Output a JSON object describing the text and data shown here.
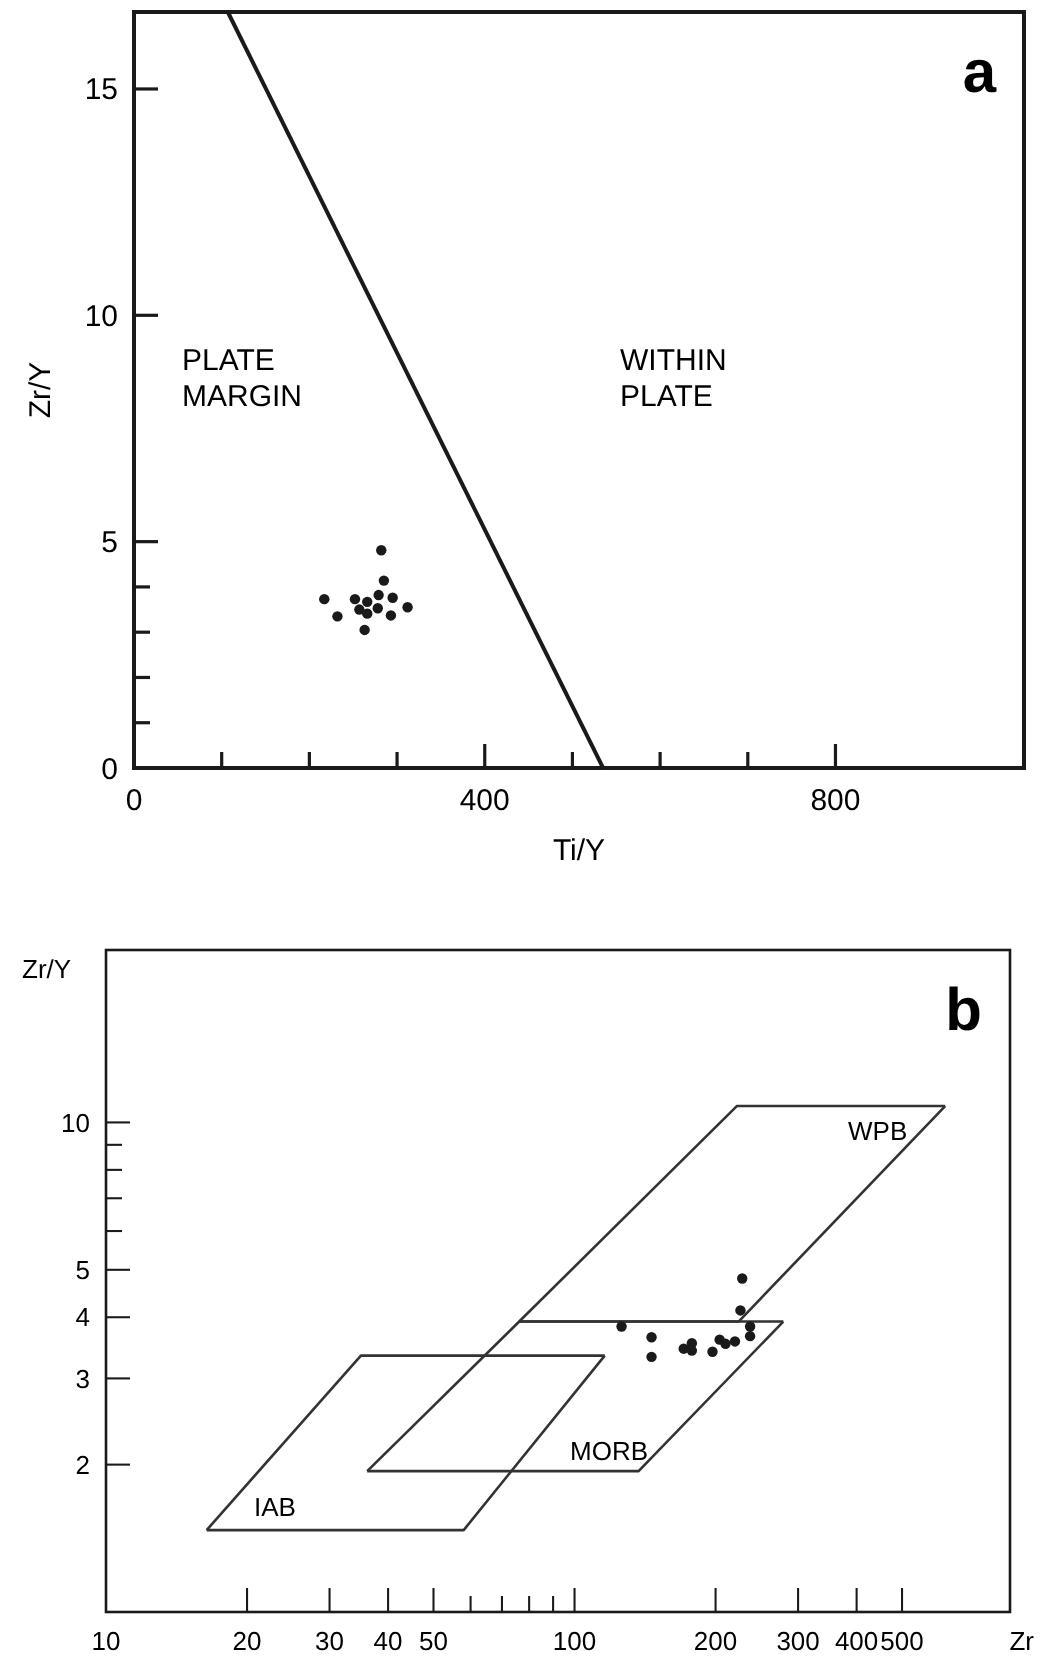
{
  "chart_data": [
    {
      "type": "scatter",
      "xlabel": "Ti/Y",
      "ylabel": "Zr/Y",
      "xlim": [
        0,
        1015
      ],
      "ylim": [
        0,
        16.7
      ],
      "xticks": [
        0,
        {
          "value": 100,
          "label": null
        },
        {
          "value": 200,
          "label": null
        },
        {
          "value": 300,
          "label": null
        },
        400,
        {
          "value": 500,
          "label": null
        },
        {
          "value": 600,
          "label": null
        },
        {
          "value": 700,
          "label": null
        },
        800
      ],
      "yticks": [
        0,
        {
          "value": 1,
          "label": null
        },
        {
          "value": 2,
          "label": null
        },
        {
          "value": 3,
          "label": null
        },
        {
          "value": 4,
          "label": null
        },
        5,
        10,
        15
      ],
      "marker": "circle",
      "grid": false,
      "annotations": [
        "a",
        "PLATE MARGIN",
        "WITHIN PLATE"
      ],
      "series": [
        {
          "type": "line",
          "marker": "none",
          "color": "#1a1a1a",
          "x": [
            107,
            535
          ],
          "values": [
            16.7,
            0
          ]
        },
        {
          "color": "#1a1a1a",
          "x": [
            282,
            285,
            217,
            232,
            252,
            266,
            279,
            295,
            266,
            278,
            293,
            312,
            263,
            257
          ],
          "values": [
            4.81,
            4.14,
            3.73,
            3.35,
            3.73,
            3.67,
            3.82,
            3.76,
            3.41,
            3.53,
            3.37,
            3.55,
            3.05,
            3.5
          ]
        }
      ]
    },
    {
      "type": "scatter",
      "xlabel": "Zr",
      "ylabel": "Zr/Y",
      "log": "xy",
      "xlim": [
        10,
        850
      ],
      "ylim": [
        1,
        22.5
      ],
      "xticks": [
        10,
        20,
        30,
        40,
        50,
        {
          "value": 60,
          "label": null
        },
        {
          "value": 70,
          "label": null
        },
        {
          "value": 80,
          "label": null
        },
        {
          "value": 90,
          "label": null
        },
        100,
        200,
        300,
        400,
        500
      ],
      "yticks": [
        2,
        3,
        4,
        5,
        {
          "value": 6,
          "label": null
        },
        {
          "value": 7,
          "label": null
        },
        {
          "value": 8,
          "label": null
        },
        {
          "value": 9,
          "label": null
        },
        10
      ],
      "marker": "circle",
      "grid": false,
      "annotations": [
        "b",
        "IAB",
        "MORB",
        "WPB"
      ],
      "series": [
        {
          "type": "line",
          "marker": "none",
          "color": "#333333",
          "x": [
            16.4,
            35,
            116
          ],
          "values": [
            1.47,
            3.34,
            3.34
          ]
        },
        {
          "type": "line",
          "marker": "none",
          "color": "#333333",
          "x": [
            16.4,
            58,
            116
          ],
          "values": [
            1.47,
            1.47,
            3.34
          ]
        },
        {
          "type": "line",
          "marker": "none",
          "color": "#333333",
          "x": [
            36.1,
            76.2,
            279
          ],
          "values": [
            1.94,
            3.92,
            3.92
          ]
        },
        {
          "type": "line",
          "marker": "none",
          "color": "#333333",
          "x": [
            36.1,
            137,
            279
          ],
          "values": [
            1.94,
            1.94,
            3.92
          ]
        },
        {
          "type": "line",
          "marker": "none",
          "color": "#333333",
          "x": [
            76.2,
            222,
            618
          ],
          "values": [
            3.92,
            10.8,
            10.8
          ]
        },
        {
          "type": "line",
          "marker": "none",
          "color": "#333333",
          "x": [
            76.2,
            224,
            618
          ],
          "values": [
            3.92,
            3.92,
            10.8
          ]
        },
        {
          "color": "#1a1a1a",
          "x": [
            126,
            146,
            146,
            171,
            178,
            178,
            197,
            204,
            210,
            220,
            228,
            226,
            237,
            237
          ],
          "values": [
            3.83,
            3.64,
            3.32,
            3.45,
            3.54,
            3.42,
            3.4,
            3.6,
            3.53,
            3.57,
            4.8,
            4.13,
            3.83,
            3.66
          ]
        }
      ]
    }
  ]
}
